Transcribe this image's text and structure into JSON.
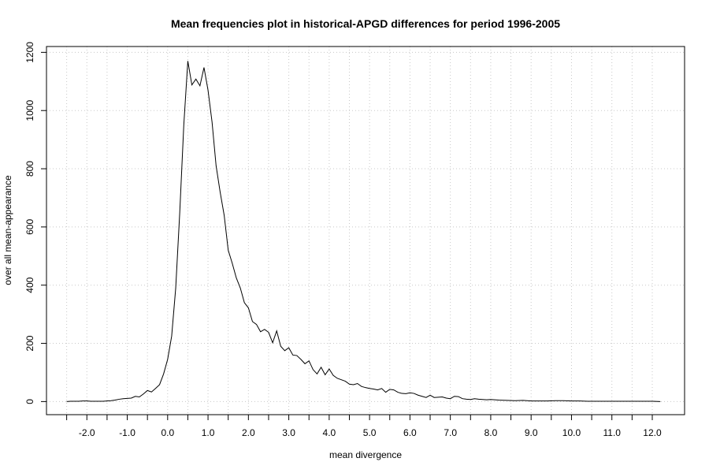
{
  "chart_data": {
    "type": "line",
    "title": "Mean frequencies plot in historical-APGD differences for period 1996-2005",
    "xlabel": "mean divergence",
    "ylabel": "over all mean-appearance",
    "xlim": [
      -3.0,
      12.8
    ],
    "ylim": [
      -45,
      1220
    ],
    "x_ticks": [
      -2.0,
      -1.0,
      0.0,
      1.0,
      2.0,
      3.0,
      4.0,
      5.0,
      6.0,
      7.0,
      8.0,
      9.0,
      10.0,
      11.0,
      12.0
    ],
    "x_tick_labels": [
      "-2.0",
      "-1.0",
      "0.0",
      "1.0",
      "2.0",
      "3.0",
      "4.0",
      "5.0",
      "6.0",
      "7.0",
      "8.0",
      "9.0",
      "10.0",
      "11.0",
      "12.0"
    ],
    "x_minor_ticks": [
      -2.5,
      -1.5,
      -0.5,
      0.5,
      1.5,
      2.5,
      3.5,
      4.5,
      5.5,
      6.5,
      7.5,
      8.5,
      9.5,
      10.5,
      11.5
    ],
    "y_ticks": [
      0,
      200,
      400,
      600,
      800,
      1000,
      1200
    ],
    "y_tick_labels": [
      "0",
      "200",
      "400",
      "600",
      "800",
      "1000",
      "1200"
    ],
    "grid": true,
    "series": [
      {
        "x": [
          -2.5,
          -2.4,
          -2.3,
          -2.2,
          -2.1,
          -2.0,
          -1.9,
          -1.8,
          -1.7,
          -1.6,
          -1.5,
          -1.4,
          -1.3,
          -1.2,
          -1.1,
          -1.0,
          -0.9,
          -0.8,
          -0.7,
          -0.6,
          -0.5,
          -0.4,
          -0.3,
          -0.2,
          -0.1,
          0.0,
          0.1,
          0.2,
          0.3,
          0.4,
          0.5,
          0.6,
          0.7,
          0.8,
          0.9,
          1.0,
          1.1,
          1.2,
          1.3,
          1.4,
          1.5,
          1.6,
          1.7,
          1.8,
          1.9,
          2.0,
          2.1,
          2.2,
          2.3,
          2.4,
          2.5,
          2.6,
          2.7,
          2.8,
          2.9,
          3.0,
          3.1,
          3.2,
          3.3,
          3.4,
          3.5,
          3.6,
          3.7,
          3.8,
          3.9,
          4.0,
          4.1,
          4.2,
          4.3,
          4.4,
          4.5,
          4.6,
          4.7,
          4.8,
          4.9,
          5.0,
          5.1,
          5.2,
          5.3,
          5.4,
          5.5,
          5.6,
          5.7,
          5.8,
          5.9,
          6.0,
          6.1,
          6.2,
          6.3,
          6.4,
          6.5,
          6.6,
          6.7,
          6.8,
          6.9,
          7.0,
          7.1,
          7.2,
          7.3,
          7.4,
          7.5,
          7.6,
          7.7,
          7.8,
          7.9,
          8.0,
          8.2,
          8.4,
          8.6,
          8.8,
          9.0,
          9.2,
          9.4,
          9.6,
          9.8,
          10.0,
          10.2,
          10.4,
          10.6,
          10.8,
          11.0,
          11.2,
          11.4,
          11.6,
          11.8,
          12.0,
          12.2
        ],
        "y": [
          0,
          1,
          1,
          1,
          2,
          2,
          1,
          1,
          1,
          1,
          2,
          3,
          5,
          8,
          10,
          11,
          12,
          18,
          16,
          26,
          38,
          33,
          45,
          58,
          95,
          145,
          225,
          390,
          650,
          950,
          1170,
          1088,
          1108,
          1085,
          1148,
          1070,
          960,
          810,
          720,
          640,
          520,
          475,
          425,
          390,
          340,
          322,
          275,
          265,
          240,
          248,
          238,
          202,
          243,
          190,
          175,
          185,
          160,
          158,
          145,
          130,
          140,
          110,
          95,
          118,
          92,
          112,
          90,
          80,
          75,
          70,
          60,
          58,
          62,
          52,
          48,
          45,
          43,
          40,
          45,
          32,
          42,
          40,
          32,
          28,
          27,
          30,
          28,
          22,
          18,
          14,
          22,
          14,
          15,
          16,
          12,
          10,
          18,
          17,
          10,
          8,
          7,
          10,
          8,
          7,
          6,
          7,
          5,
          4,
          3,
          4,
          2,
          2,
          2,
          3,
          3,
          2,
          2,
          1,
          1,
          1,
          1,
          1,
          1,
          1,
          1,
          1,
          0
        ]
      }
    ]
  }
}
